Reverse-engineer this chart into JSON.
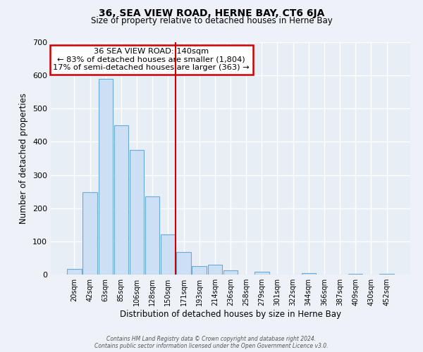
{
  "title": "36, SEA VIEW ROAD, HERNE BAY, CT6 6JA",
  "subtitle": "Size of property relative to detached houses in Herne Bay",
  "xlabel": "Distribution of detached houses by size in Herne Bay",
  "ylabel": "Number of detached properties",
  "bar_labels": [
    "20sqm",
    "42sqm",
    "63sqm",
    "85sqm",
    "106sqm",
    "128sqm",
    "150sqm",
    "171sqm",
    "193sqm",
    "214sqm",
    "236sqm",
    "258sqm",
    "279sqm",
    "301sqm",
    "322sqm",
    "344sqm",
    "366sqm",
    "387sqm",
    "409sqm",
    "430sqm",
    "452sqm"
  ],
  "bar_values": [
    18,
    248,
    590,
    450,
    375,
    236,
    120,
    67,
    25,
    30,
    12,
    0,
    8,
    0,
    0,
    5,
    0,
    0,
    3,
    0,
    2
  ],
  "bar_color": "#ccdff5",
  "bar_edge_color": "#6aaad4",
  "vline_x": 6.5,
  "vline_color": "#cc0000",
  "annotation_lines": [
    "36 SEA VIEW ROAD: 140sqm",
    "← 83% of detached houses are smaller (1,804)",
    "17% of semi-detached houses are larger (363) →"
  ],
  "annotation_box_color": "#ffffff",
  "annotation_box_edge": "#cc0000",
  "ylim": [
    0,
    700
  ],
  "yticks": [
    0,
    100,
    200,
    300,
    400,
    500,
    600,
    700
  ],
  "footer_line1": "Contains HM Land Registry data © Crown copyright and database right 2024.",
  "footer_line2": "Contains public sector information licensed under the Open Government Licence v3.0.",
  "bg_color": "#eef2f8",
  "plot_bg_color": "#e8eef6"
}
